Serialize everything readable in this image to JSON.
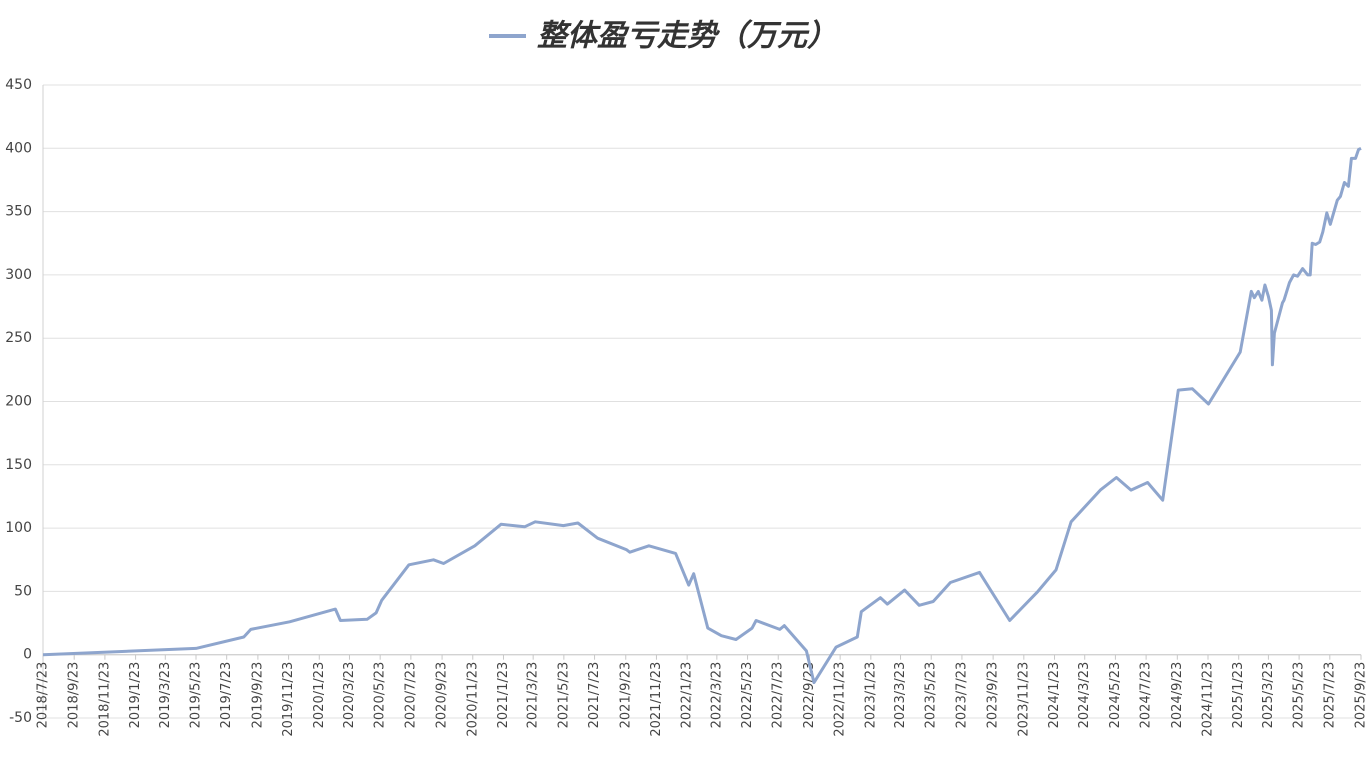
{
  "chart_data": {
    "type": "line",
    "x": [
      "2018/7/23",
      "2019/5/23",
      "2019/8/26",
      "2019/9/9",
      "2019/11/25",
      "2020/2/24",
      "2020/3/5",
      "2020/4/27",
      "2020/5/15",
      "2020/5/26",
      "2020/7/19",
      "2020/9/6",
      "2020/9/26",
      "2020/11/27",
      "2021/1/18",
      "2021/3/6",
      "2021/3/27",
      "2021/5/22",
      "2021/6/20",
      "2021/7/29",
      "2021/9/24",
      "2021/10/1",
      "2021/11/8",
      "2021/12/31",
      "2022/1/26",
      "2022/2/5",
      "2022/3/5",
      "2022/4/1",
      "2022/4/30",
      "2022/6/1",
      "2022/6/9",
      "2022/7/26",
      "2022/8/4",
      "2022/9/17",
      "2022/10/2",
      "2022/11/15",
      "2022/12/27",
      "2023/1/4",
      "2023/2/11",
      "2023/2/25",
      "2023/3/31",
      "2023/4/29",
      "2023/5/27",
      "2023/6/30",
      "2023/8/27",
      "2023/10/26",
      "2023/12/21",
      "2024/1/26",
      "2024/2/25",
      "2024/4/23",
      "2024/5/25",
      "2024/6/23",
      "2024/7/26",
      "2024/8/25",
      "2024/9/25",
      "2024/10/23",
      "2024/11/24",
      "2025/1/26",
      "2025/2/17",
      "2025/2/23",
      "2025/3/3",
      "2025/3/10",
      "2025/3/16",
      "2025/3/23",
      "2025/3/29",
      "2025/3/31",
      "2025/4/4",
      "2025/4/20",
      "2025/4/23",
      "2025/5/4",
      "2025/5/12",
      "2025/5/20",
      "2025/5/30",
      "2025/6/9",
      "2025/6/14",
      "2025/6/18",
      "2025/6/25",
      "2025/7/3",
      "2025/7/9",
      "2025/7/17",
      "2025/7/24",
      "2025/8/7",
      "2025/8/13",
      "2025/8/21",
      "2025/8/29",
      "2025/9/4",
      "2025/9/12",
      "2025/9/18",
      "2025/9/23"
    ],
    "series": [
      {
        "name": "整体盈亏走势（万元）",
        "color": "#8ea5cd",
        "values": [
          0,
          5,
          14,
          20,
          26,
          36,
          27,
          28,
          33,
          43,
          71,
          75,
          72,
          86,
          103,
          101,
          105,
          102,
          104,
          92,
          83,
          81,
          86,
          80,
          55,
          64,
          21,
          15,
          12,
          21,
          27,
          20,
          23,
          3,
          -22,
          6,
          14,
          34,
          45,
          40,
          51,
          39,
          42,
          57,
          65,
          27,
          50,
          67,
          105,
          130,
          140,
          130,
          136,
          122,
          209,
          210,
          198,
          239,
          287,
          282,
          287,
          280,
          292,
          283,
          272,
          229,
          254,
          278,
          280,
          294,
          300,
          299,
          305,
          300,
          300,
          325,
          324,
          326,
          334,
          349,
          340,
          359,
          362,
          373,
          370,
          392,
          392,
          399,
          400
        ]
      }
    ],
    "xticks": [
      "2018/7/23",
      "2018/9/23",
      "2018/11/23",
      "2019/1/23",
      "2019/3/23",
      "2019/5/23",
      "2019/7/23",
      "2019/9/23",
      "2019/11/23",
      "2020/1/23",
      "2020/3/23",
      "2020/5/23",
      "2020/7/23",
      "2020/9/23",
      "2020/11/23",
      "2021/1/23",
      "2021/3/23",
      "2021/5/23",
      "2021/7/23",
      "2021/9/23",
      "2021/11/23",
      "2022/1/23",
      "2022/3/23",
      "2022/5/23",
      "2022/7/23",
      "2022/9/23",
      "2022/11/23",
      "2023/1/23",
      "2023/3/23",
      "2023/5/23",
      "2023/7/23",
      "2023/9/23",
      "2023/11/23",
      "2024/1/23",
      "2024/3/23",
      "2024/5/23",
      "2024/7/23",
      "2024/9/23",
      "2024/11/23",
      "2025/1/23",
      "2025/3/23",
      "2025/5/23",
      "2025/7/23",
      "2025/9/23"
    ],
    "ylim": [
      -50,
      450
    ],
    "yticks": [
      -50,
      0,
      50,
      100,
      150,
      200,
      250,
      300,
      350,
      400,
      450
    ],
    "grid": true,
    "legend": "top"
  }
}
